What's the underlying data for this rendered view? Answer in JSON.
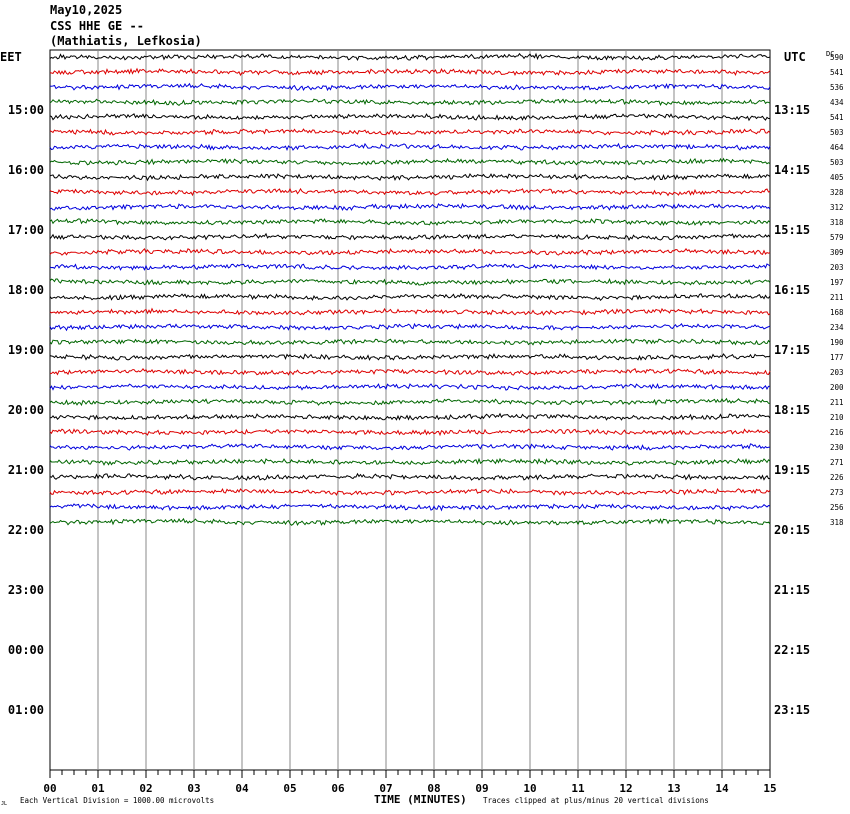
{
  "header": {
    "date": "May10,2025",
    "station": "CSS HHE GE --",
    "location": "(Mathiatis, Lefkosia)"
  },
  "chart_data": {
    "type": "line",
    "title": "",
    "xlabel": "TIME (MINUTES)",
    "ylabel": "",
    "left_axis_label": "EET",
    "right_axis_label": "UTC",
    "dc_label": "DC",
    "x_ticks": [
      "00",
      "01",
      "02",
      "03",
      "04",
      "05",
      "06",
      "07",
      "08",
      "09",
      "10",
      "11",
      "12",
      "13",
      "14",
      "15"
    ],
    "xlim": [
      0,
      15
    ],
    "left_hour_labels": [
      "15:00",
      "16:00",
      "17:00",
      "18:00",
      "19:00",
      "20:00",
      "21:00",
      "22:00",
      "23:00",
      "00:00",
      "01:00"
    ],
    "right_hour_labels": [
      "13:15",
      "14:15",
      "15:15",
      "16:15",
      "17:15",
      "18:15",
      "19:15",
      "20:15",
      "21:15",
      "22:15",
      "23:15"
    ],
    "trace_colors": [
      "#000000",
      "#dd0000",
      "#0000dd",
      "#006600"
    ],
    "trace_dc_offsets": [
      590,
      541,
      536,
      434,
      541,
      503,
      464,
      503,
      405,
      328,
      312,
      318,
      579,
      309,
      203,
      197,
      211,
      168,
      234,
      190,
      177,
      203,
      200,
      211,
      210,
      216,
      230,
      271,
      226,
      273,
      256,
      318
    ],
    "footer_left": "Each Vertical Division = 1000.00 microvolts",
    "footer_right": "Traces clipped at plus/minus 20 vertical divisions",
    "corner_mark": "JL"
  }
}
